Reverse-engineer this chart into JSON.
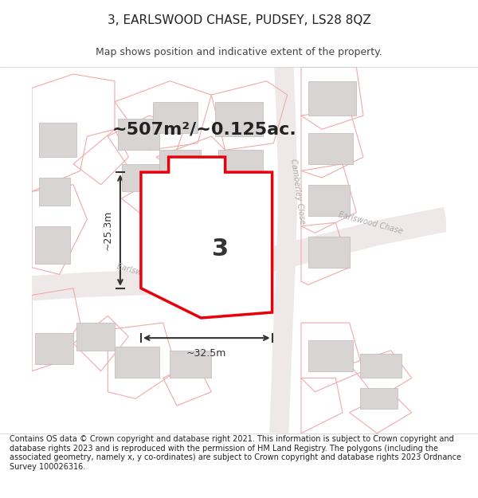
{
  "title": "3, EARLSWOOD CHASE, PUDSEY, LS28 8QZ",
  "subtitle": "Map shows position and indicative extent of the property.",
  "footer": "Contains OS data © Crown copyright and database right 2021. This information is subject to Crown copyright and database rights 2023 and is reproduced with the permission of HM Land Registry. The polygons (including the associated geometry, namely x, y co-ordinates) are subject to Crown copyright and database rights 2023 Ordnance Survey 100026316.",
  "area_text": "~507m²/~0.125ac.",
  "plot_number": "3",
  "dim_width": "~32.5m",
  "dim_height": "~25.3m",
  "map_bg": "#f5f0f0",
  "plot_fill": "#ffffff",
  "plot_edge": "#e8000a",
  "building_fill": "#d8d4d4",
  "building_edge": "#c0b8b8",
  "prop_edge": "#f0aaaa",
  "road_label_color": "#aaaaaa",
  "dim_color": "#333333",
  "title_color": "#222222",
  "footer_color": "#222222",
  "title_fontsize": 11,
  "subtitle_fontsize": 9,
  "footer_fontsize": 7
}
